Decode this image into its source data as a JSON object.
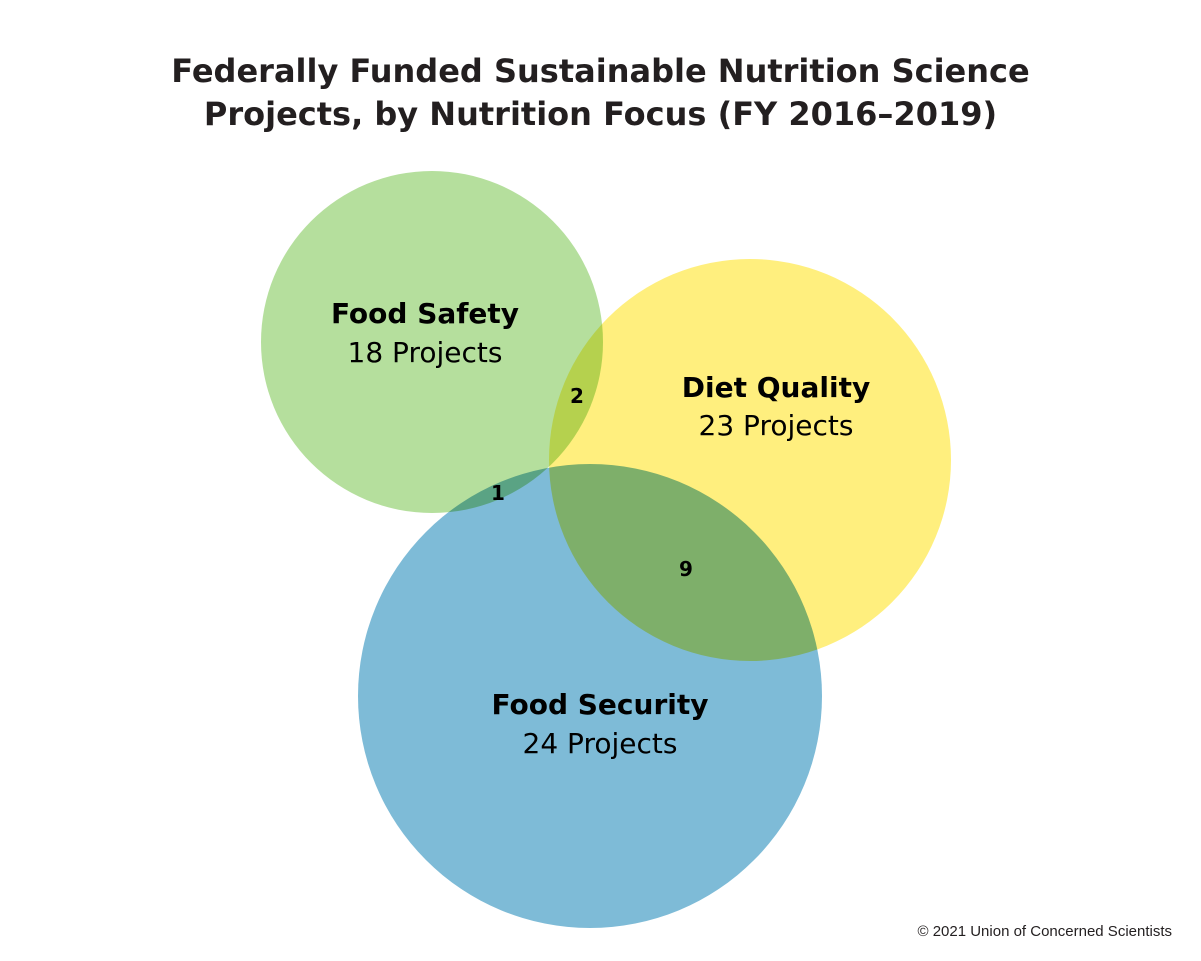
{
  "title": {
    "line1": "Federally Funded Sustainable Nutrition Science",
    "line2": "Projects, by Nutrition Focus (FY 2016–2019)"
  },
  "sets": {
    "food_safety": {
      "name": "Food Safety",
      "count_label": "18 Projects",
      "count": 18,
      "color": "#a8d98c"
    },
    "diet_quality": {
      "name": "Diet Quality",
      "count_label": "23 Projects",
      "count": 23,
      "color": "#ffeb5a"
    },
    "food_security": {
      "name": "Food Security",
      "count_label": "24 Projects",
      "count": 24,
      "color": "#5aa8cc"
    }
  },
  "overlaps": {
    "safety_quality": "2",
    "safety_security": "1",
    "quality_security": "9"
  },
  "credit": "© 2021 Union of Concerned Scientists"
}
